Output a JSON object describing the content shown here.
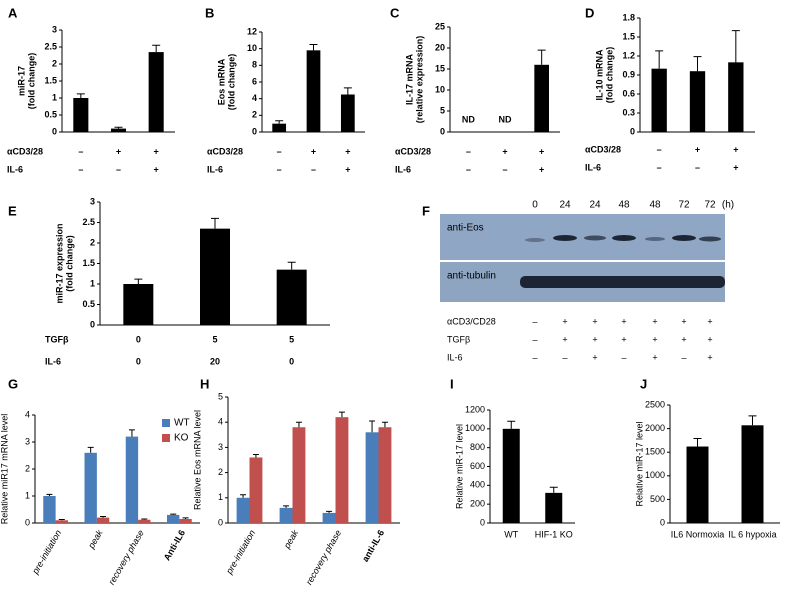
{
  "chart_data": [
    {
      "type": "bar",
      "panel": "A",
      "ylabel": [
        "miR-17",
        "(fold change)"
      ],
      "values": [
        1.0,
        0.1,
        2.35
      ],
      "errors": [
        0.12,
        0.04,
        0.2
      ],
      "color": "#000000",
      "ylim": [
        0,
        3
      ],
      "yticks": [
        0,
        0.5,
        1,
        1.5,
        2,
        2.5,
        3
      ],
      "conditions": [
        {
          "label": "αCD3/28",
          "values": [
            "–",
            "+",
            "+"
          ]
        },
        {
          "label": "IL-6",
          "values": [
            "–",
            "–",
            "+"
          ]
        }
      ]
    },
    {
      "type": "bar",
      "panel": "B",
      "ylabel": [
        "Eos mRNA",
        "(fold change)"
      ],
      "values": [
        1.0,
        9.8,
        4.5
      ],
      "errors": [
        0.35,
        0.7,
        0.8
      ],
      "color": "#000000",
      "ylim": [
        0,
        12
      ],
      "yticks": [
        0,
        2,
        4,
        6,
        8,
        10,
        12
      ],
      "conditions": [
        {
          "label": "αCD3/28",
          "values": [
            "–",
            "+",
            "+"
          ]
        },
        {
          "label": "IL-6",
          "values": [
            "–",
            "–",
            "+"
          ]
        }
      ]
    },
    {
      "type": "bar",
      "panel": "C",
      "ylabel": [
        "IL-17 mRNA",
        "(relative expression)"
      ],
      "values": [
        null,
        null,
        16
      ],
      "value_labels": [
        "ND",
        "ND",
        null
      ],
      "errors": [
        null,
        null,
        3.5
      ],
      "color": "#000000",
      "ylim": [
        0,
        25
      ],
      "yticks": [
        0,
        5,
        10,
        15,
        20,
        25
      ],
      "conditions": [
        {
          "label": "αCD3/28",
          "values": [
            "–",
            "+",
            "+"
          ]
        },
        {
          "label": "IL-6",
          "values": [
            "–",
            "–",
            "+"
          ]
        }
      ]
    },
    {
      "type": "bar",
      "panel": "D",
      "ylabel": [
        "IL-10 mRNA",
        "(fold change)"
      ],
      "values": [
        1.0,
        0.96,
        1.1
      ],
      "errors": [
        0.28,
        0.23,
        0.5
      ],
      "color": "#000000",
      "ylim": [
        0,
        1.8
      ],
      "yticks": [
        0,
        0.3,
        0.6,
        0.9,
        1.2,
        1.5,
        1.8
      ],
      "conditions": [
        {
          "label": "αCD3/28",
          "values": [
            "–",
            "+",
            "+"
          ]
        },
        {
          "label": "IL-6",
          "values": [
            "–",
            "–",
            "+"
          ]
        }
      ]
    },
    {
      "type": "bar",
      "panel": "E",
      "ylabel": [
        "miR-17 expression",
        "(fold change)"
      ],
      "values": [
        1.0,
        2.35,
        1.35
      ],
      "errors": [
        0.12,
        0.25,
        0.18
      ],
      "color": "#000000",
      "ylim": [
        0,
        3
      ],
      "yticks": [
        0,
        0.5,
        1,
        1.5,
        2,
        2.5,
        3
      ],
      "conditions": [
        {
          "label": "TGFβ",
          "values": [
            "0",
            "5",
            "5"
          ]
        },
        {
          "label": "IL-6",
          "values": [
            "0",
            "20",
            "0"
          ]
        }
      ]
    },
    {
      "type": "grouped-bar",
      "panel": "G",
      "ylabel": [
        "Relative miR17 mRNA level"
      ],
      "categories": [
        "pre-initiation",
        "peak",
        "recovery phase",
        "Anti-IL6"
      ],
      "series": [
        {
          "name": "WT",
          "color": "#4a7ebb",
          "values": [
            1.0,
            2.6,
            3.2,
            0.3
          ],
          "errors": [
            0.06,
            0.2,
            0.25,
            0.03
          ]
        },
        {
          "name": "KO",
          "color": "#c0504d",
          "values": [
            0.1,
            0.2,
            0.12,
            0.15
          ],
          "errors": [
            0.03,
            0.04,
            0.03,
            0.04
          ]
        }
      ],
      "ylim": [
        0,
        4
      ],
      "yticks": [
        0,
        1,
        2,
        3,
        4
      ],
      "legend": "top-right"
    },
    {
      "type": "grouped-bar",
      "panel": "H",
      "ylabel": [
        "Relative Eos mRNA level"
      ],
      "categories": [
        "pre-initiation",
        "peak",
        "recovery phase",
        "anti-IL-6"
      ],
      "series": [
        {
          "name": null,
          "color": "#4a7ebb",
          "values": [
            1.0,
            0.6,
            0.4,
            3.6
          ],
          "errors": [
            0.12,
            0.08,
            0.06,
            0.45
          ]
        },
        {
          "name": null,
          "color": "#c0504d",
          "values": [
            2.6,
            3.8,
            4.2,
            3.8
          ],
          "errors": [
            0.12,
            0.2,
            0.2,
            0.2
          ]
        }
      ],
      "ylim": [
        0,
        5
      ],
      "yticks": [
        0,
        1,
        2,
        3,
        4,
        5
      ]
    },
    {
      "type": "bar",
      "panel": "I",
      "ylabel": [
        "Relative miR-17 level"
      ],
      "categories": [
        "WT",
        "HIF-1 KO"
      ],
      "values": [
        1000,
        320
      ],
      "errors": [
        80,
        60
      ],
      "color": "#000000",
      "ylim": [
        0,
        1200
      ],
      "yticks": [
        0,
        200,
        400,
        600,
        800,
        1000,
        1200
      ]
    },
    {
      "type": "bar",
      "panel": "J",
      "ylabel": [
        "Relative miR-17 level"
      ],
      "categories": [
        "IL6 Normoxia",
        "IL 6 hypoxia"
      ],
      "values": [
        1620,
        2070
      ],
      "errors": [
        170,
        200
      ],
      "color": "#000000",
      "ylim": [
        0,
        2500
      ],
      "yticks": [
        0,
        500,
        1000,
        1500,
        2000,
        2500
      ]
    }
  ],
  "blot": {
    "panel": "F",
    "times": [
      "0",
      "24",
      "24",
      "48",
      "48",
      "72",
      "72"
    ],
    "unit": "(h)",
    "antibodies": [
      "anti-Eos",
      "anti-tubulin"
    ],
    "conditions": [
      {
        "label": "αCD3/CD28",
        "values": [
          "–",
          "+",
          "+",
          "+",
          "+",
          "+",
          "+"
        ]
      },
      {
        "label": "TGFβ",
        "values": [
          "–",
          "+",
          "+",
          "+",
          "+",
          "+",
          "+"
        ]
      },
      {
        "label": "IL-6",
        "values": [
          "–",
          "–",
          "+",
          "–",
          "+",
          "–",
          "+"
        ]
      }
    ]
  }
}
